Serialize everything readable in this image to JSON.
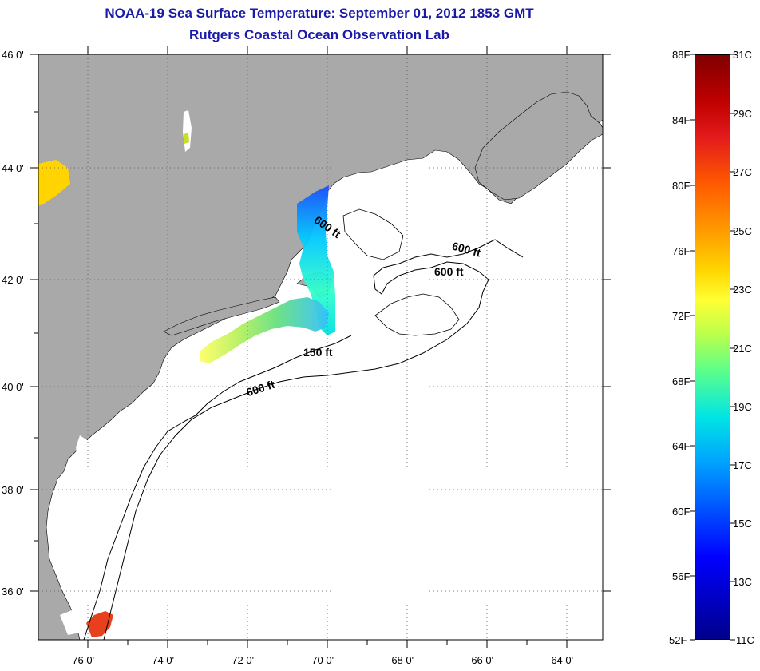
{
  "header": {
    "title": "NOAA-19 Sea Surface Temperature:  September 01, 2012 1853 GMT",
    "subtitle": "Rutgers Coastal Ocean Observation Lab"
  },
  "map": {
    "lat_range": [
      35,
      46
    ],
    "lon_range": [
      -77,
      -63
    ],
    "lat_ticks": [
      "46 0'",
      "44 0'",
      "42 0'",
      "40 0'",
      "38 0'",
      "36 0'"
    ],
    "lon_ticks": [
      "-76 0'",
      "-74 0'",
      "-72 0'",
      "-70 0'",
      "-68 0'",
      "-66 0'",
      "-64 0'"
    ],
    "contour_labels": {
      "c1": "600 ft",
      "c2": "600 ft",
      "c3": "600 ft",
      "c4": "150 ft",
      "c5": "600 ft"
    },
    "colors": {
      "land": "#a9a9a9",
      "ocean": "#ffffff",
      "grid": "#555555"
    }
  },
  "colorbar": {
    "fahrenheit": [
      "88F",
      "84F",
      "80F",
      "76F",
      "72F",
      "68F",
      "64F",
      "60F",
      "56F",
      "52F"
    ],
    "celsius": [
      "31C",
      "29C",
      "27C",
      "25C",
      "23C",
      "21C",
      "19C",
      "17C",
      "15C",
      "13C",
      "11C"
    ],
    "gradient_colors": [
      "#800000",
      "#e31a1c",
      "#ff7f00",
      "#ffd700",
      "#ffff33",
      "#7fff7f",
      "#00e5e5",
      "#0080ff",
      "#0000ff",
      "#00008b"
    ]
  }
}
